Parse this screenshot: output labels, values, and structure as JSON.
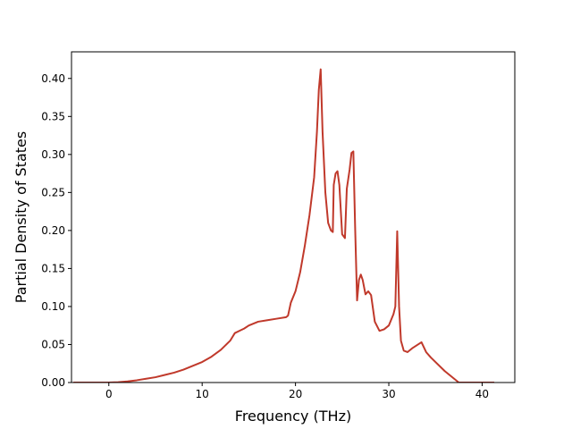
{
  "chart_data": {
    "type": "line",
    "title": "",
    "xlabel": "Frequency (THz)",
    "ylabel": "Partial Density of States",
    "xlim": [
      -4,
      43.5
    ],
    "ylim": [
      0,
      0.435
    ],
    "xticks": [
      0,
      10,
      20,
      30,
      40
    ],
    "yticks": [
      0.0,
      0.05,
      0.1,
      0.15,
      0.2,
      0.25,
      0.3,
      0.35,
      0.4
    ],
    "ytick_labels": [
      "0.00",
      "0.05",
      "0.10",
      "0.15",
      "0.20",
      "0.25",
      "0.30",
      "0.35",
      "0.40"
    ],
    "grid": false,
    "legend": "none",
    "series": [
      {
        "color": "#c0392b",
        "x": [
          -3.8,
          -2,
          0,
          1,
          2,
          3,
          4,
          5,
          6,
          7,
          8,
          9,
          10,
          11,
          12,
          12.5,
          13,
          13.5,
          14,
          14.5,
          15,
          16,
          17,
          18,
          19,
          19.2,
          19.5,
          20,
          20.5,
          21,
          21.5,
          22,
          22.3,
          22.5,
          22.7,
          22.9,
          23.2,
          23.5,
          23.8,
          24,
          24.1,
          24.3,
          24.5,
          24.7,
          25,
          25.3,
          25.5,
          25.8,
          26,
          26.2,
          26.4,
          26.6,
          26.8,
          27,
          27.2,
          27.5,
          27.8,
          28.1,
          28.5,
          29,
          29.5,
          30,
          30.5,
          30.7,
          30.9,
          31.1,
          31.3,
          31.6,
          32,
          32.5,
          33,
          33.5,
          34,
          34.5,
          35,
          36,
          37,
          37.5,
          38,
          40,
          41.3
        ],
        "y": [
          0.0,
          0.0,
          0.0,
          0.0005,
          0.0015,
          0.003,
          0.005,
          0.007,
          0.01,
          0.013,
          0.017,
          0.022,
          0.027,
          0.034,
          0.043,
          0.049,
          0.055,
          0.065,
          0.068,
          0.071,
          0.075,
          0.08,
          0.082,
          0.084,
          0.086,
          0.088,
          0.105,
          0.12,
          0.145,
          0.18,
          0.22,
          0.27,
          0.33,
          0.385,
          0.412,
          0.33,
          0.25,
          0.21,
          0.2,
          0.198,
          0.26,
          0.275,
          0.278,
          0.26,
          0.195,
          0.19,
          0.255,
          0.28,
          0.302,
          0.304,
          0.2,
          0.108,
          0.135,
          0.142,
          0.135,
          0.116,
          0.12,
          0.115,
          0.08,
          0.068,
          0.07,
          0.075,
          0.09,
          0.1,
          0.199,
          0.1,
          0.055,
          0.042,
          0.04,
          0.045,
          0.049,
          0.053,
          0.04,
          0.033,
          0.027,
          0.015,
          0.005,
          0.0,
          0.0,
          0.0,
          0.0
        ]
      }
    ]
  }
}
